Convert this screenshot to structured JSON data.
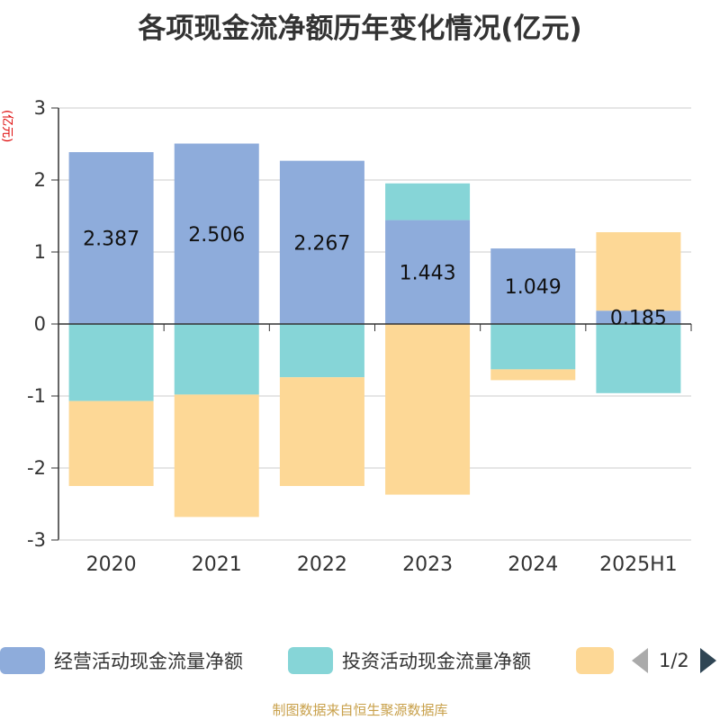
{
  "title": "各项现金流净额历年变化情况(亿元)",
  "source_text": "制图数据来自恒生聚源数据库",
  "pager": {
    "text": "1/2"
  },
  "chart_data": {
    "type": "bar",
    "stacked": true,
    "title": "各项现金流净额历年变化情况(亿元)",
    "ylabel": "(亿元)",
    "ylim": [
      -3,
      3
    ],
    "yticks": [
      "3",
      "2",
      "1",
      "0",
      "-1",
      "-2",
      "-3"
    ],
    "grid": true,
    "legend_position": "bottom",
    "categories": [
      "2020",
      "2021",
      "2022",
      "2023",
      "2024",
      "2025H1"
    ],
    "series": [
      {
        "name": "经营活动现金流量净额",
        "color": "#8eacdb",
        "values": [
          2.387,
          2.506,
          2.267,
          1.443,
          1.049,
          0.185
        ],
        "labels": [
          "2.387",
          "2.506",
          "2.267",
          "1.443",
          "1.049",
          "0.185"
        ]
      },
      {
        "name": "投资活动现金流量净额",
        "color": "#86d5d7",
        "values": [
          -1.07,
          -0.98,
          -0.74,
          0.51,
          -0.63,
          -0.96
        ]
      },
      {
        "name": "",
        "color": "#fdd896",
        "values": [
          -1.18,
          -1.7,
          -1.51,
          -2.37,
          -0.15,
          1.09
        ]
      }
    ]
  }
}
